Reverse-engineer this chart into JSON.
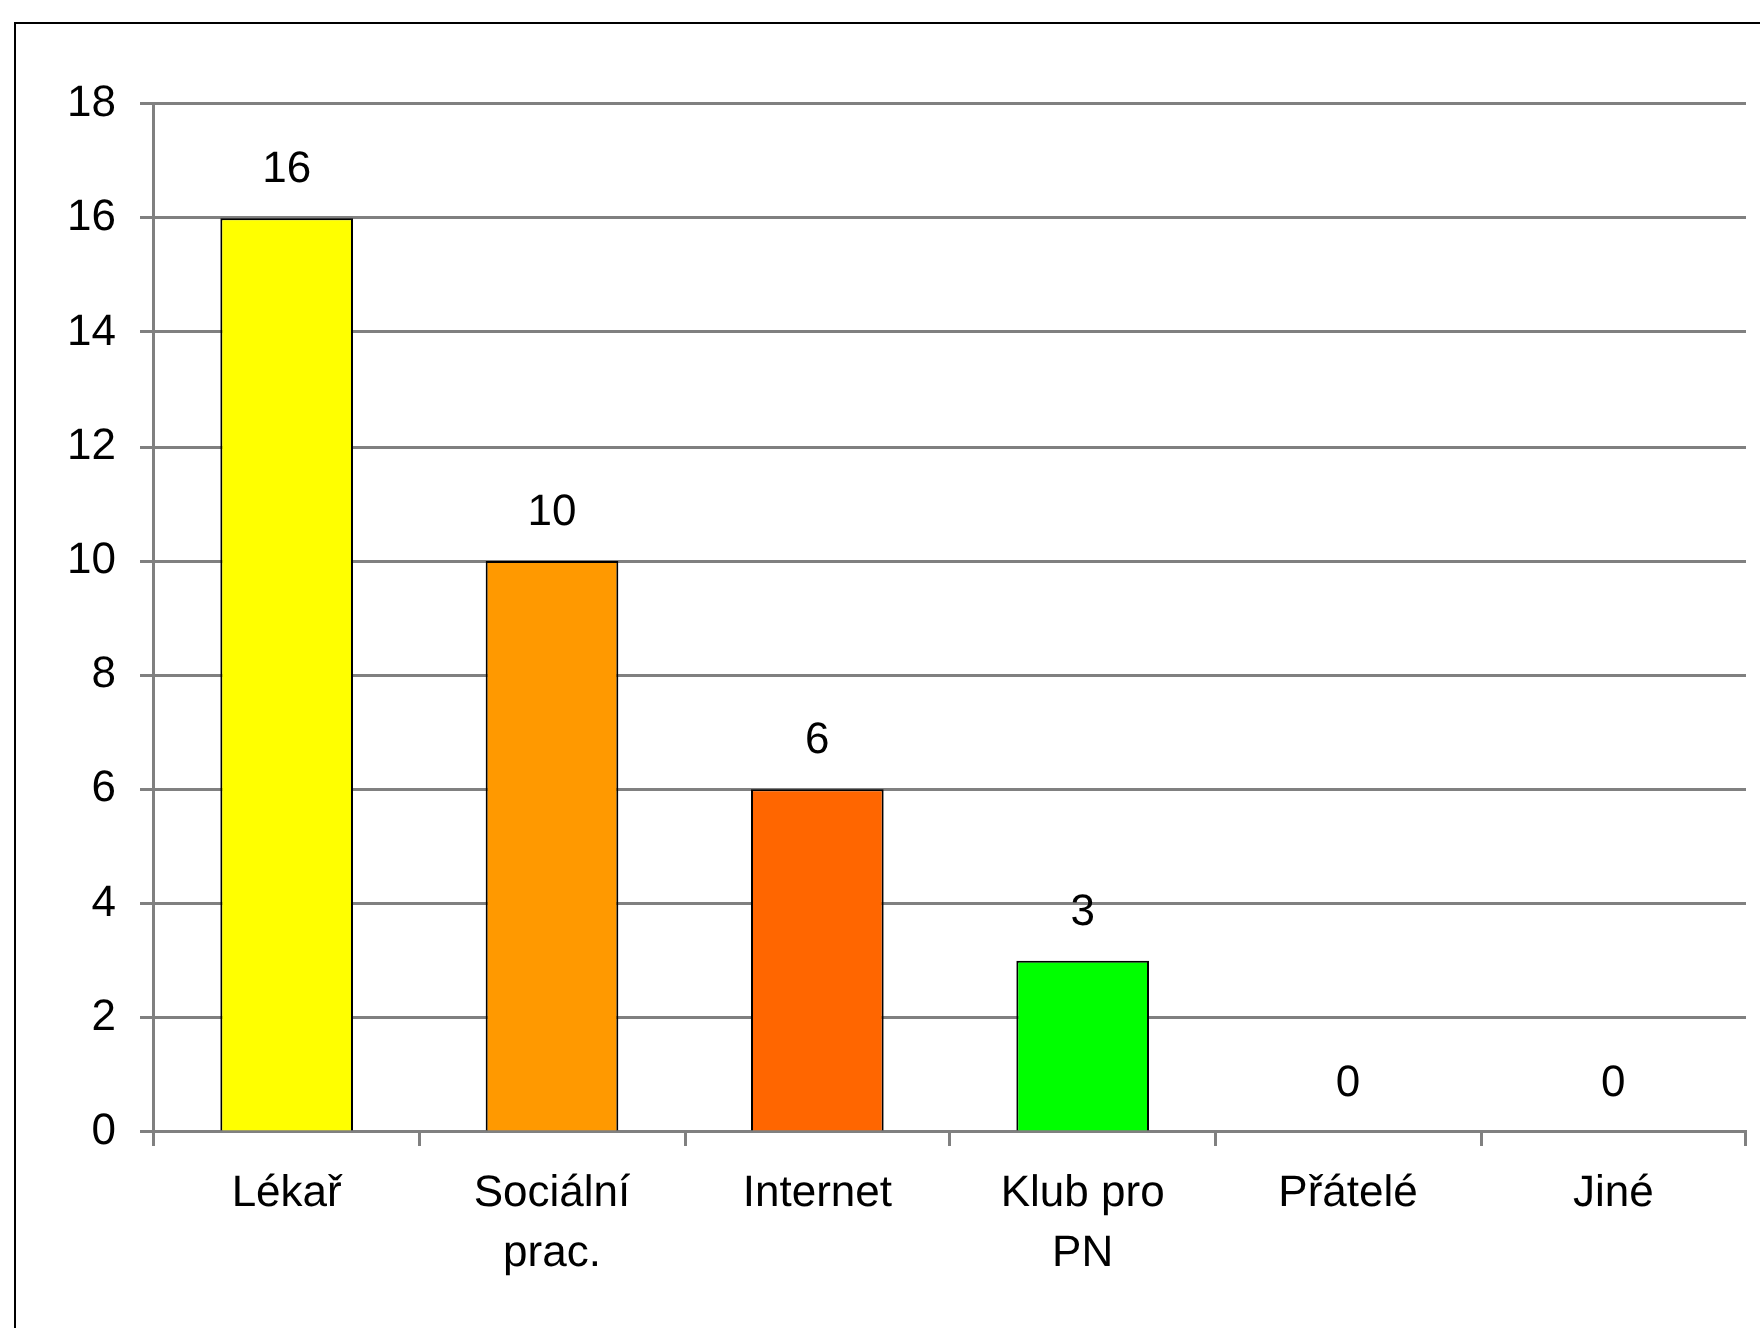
{
  "chart_data": {
    "type": "bar",
    "categories": [
      "Lékař",
      "Sociální prac.",
      "Internet",
      "Klub pro PN",
      "Přátelé",
      "Jiné"
    ],
    "values": [
      16,
      10,
      6,
      3,
      0,
      0
    ],
    "colors": [
      "#ffff00",
      "#ff9900",
      "#ff6600",
      "#00ff00",
      null,
      null
    ],
    "ylim": [
      0,
      18
    ],
    "yticks": [
      0,
      2,
      4,
      6,
      8,
      10,
      12,
      14,
      16,
      18
    ],
    "grid": "y",
    "data_labels": true
  }
}
